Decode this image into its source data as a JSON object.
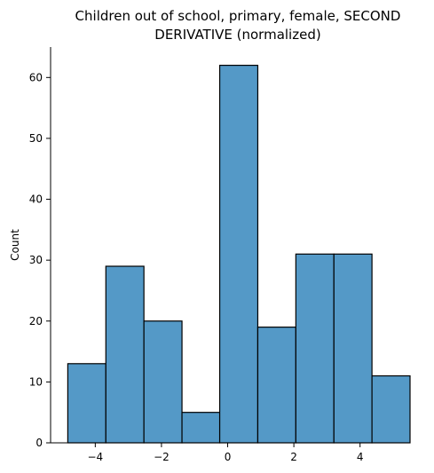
{
  "chart_data": {
    "type": "bar",
    "title_lines": [
      "Children out of school, primary, female, SECOND",
      "DERIVATIVE (normalized)"
    ],
    "xlabel": "",
    "ylabel": "Count",
    "bins": [
      {
        "x0": -4.83,
        "x1": -3.68,
        "count": 13
      },
      {
        "x0": -3.68,
        "x1": -2.53,
        "count": 29
      },
      {
        "x0": -2.53,
        "x1": -1.38,
        "count": 20
      },
      {
        "x0": -1.38,
        "x1": -0.24,
        "count": 5
      },
      {
        "x0": -0.24,
        "x1": 0.91,
        "count": 62
      },
      {
        "x0": 0.91,
        "x1": 2.06,
        "count": 19
      },
      {
        "x0": 2.06,
        "x1": 3.21,
        "count": 31
      },
      {
        "x0": 3.21,
        "x1": 4.36,
        "count": 31
      },
      {
        "x0": 4.36,
        "x1": 5.51,
        "count": 11
      }
    ],
    "xlim": [
      -5.35,
      5.51
    ],
    "ylim": [
      0,
      65
    ],
    "xticks": [
      -4,
      -2,
      0,
      2,
      4
    ],
    "xtick_labels": [
      "−4",
      "−2",
      "0",
      "2",
      "4"
    ],
    "yticks": [
      0,
      10,
      20,
      30,
      40,
      50,
      60
    ],
    "ytick_labels": [
      "0",
      "10",
      "20",
      "30",
      "40",
      "50",
      "60"
    ],
    "grid": false,
    "bar_color": "#5499c7"
  }
}
